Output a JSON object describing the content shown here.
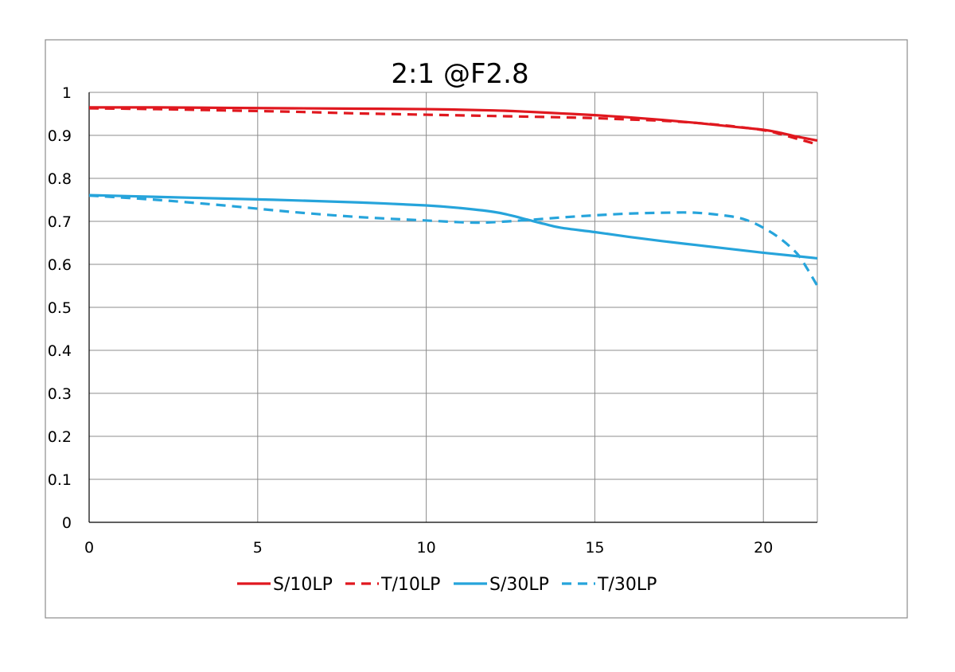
{
  "chart_data": {
    "type": "line",
    "title": "2:1  @F2.8",
    "xlabel": "",
    "ylabel": "",
    "xlim": [
      0,
      21.6
    ],
    "ylim": [
      0,
      1
    ],
    "xticks": [
      0,
      5,
      10,
      15,
      20
    ],
    "xtick_labels": [
      "0",
      "5",
      "10",
      "15",
      "20"
    ],
    "yticks": [
      0,
      0.1,
      0.2,
      0.3,
      0.4,
      0.5,
      0.6,
      0.7,
      0.8,
      0.9,
      1
    ],
    "ytick_labels": [
      "0",
      "0.1",
      "0.2",
      "0.3",
      "0.4",
      "0.5",
      "0.6",
      "0.7",
      "0.8",
      "0.9",
      "1"
    ],
    "grid": true,
    "legend_position": "bottom",
    "series": [
      {
        "name": "S/10LP",
        "color": "#e0181f",
        "dash": "solid",
        "x": [
          0,
          2,
          4,
          6,
          8,
          10,
          12,
          13,
          14,
          15,
          16,
          17,
          18,
          19,
          20,
          20.5,
          21,
          21.6
        ],
        "y": [
          0.965,
          0.965,
          0.964,
          0.963,
          0.962,
          0.961,
          0.958,
          0.955,
          0.951,
          0.947,
          0.942,
          0.936,
          0.929,
          0.921,
          0.913,
          0.906,
          0.897,
          0.888
        ]
      },
      {
        "name": "T/10LP",
        "color": "#e0181f",
        "dash": "dashed",
        "x": [
          0,
          2,
          4,
          6,
          8,
          10,
          12,
          14,
          15,
          16,
          17,
          18,
          19,
          20,
          20.5,
          21,
          21.6
        ],
        "y": [
          0.963,
          0.961,
          0.958,
          0.955,
          0.951,
          0.948,
          0.945,
          0.942,
          0.94,
          0.937,
          0.934,
          0.929,
          0.922,
          0.912,
          0.903,
          0.892,
          0.879
        ]
      },
      {
        "name": "S/30LP",
        "color": "#26a4db",
        "dash": "solid",
        "x": [
          0,
          2,
          4,
          6,
          8,
          10,
          11,
          12,
          12.5,
          13,
          13.5,
          14,
          15,
          16,
          17,
          18,
          19,
          20,
          21,
          21.6
        ],
        "y": [
          0.761,
          0.757,
          0.753,
          0.749,
          0.744,
          0.737,
          0.731,
          0.722,
          0.714,
          0.704,
          0.694,
          0.685,
          0.675,
          0.664,
          0.654,
          0.645,
          0.636,
          0.627,
          0.619,
          0.614
        ]
      },
      {
        "name": "T/30LP",
        "color": "#26a4db",
        "dash": "dashed",
        "x": [
          0,
          2,
          4,
          6,
          8,
          10,
          11,
          11.5,
          12,
          13,
          14,
          15,
          16,
          17,
          18,
          19,
          19.5,
          20,
          20.5,
          21,
          21.3,
          21.6
        ],
        "y": [
          0.76,
          0.75,
          0.737,
          0.722,
          0.71,
          0.702,
          0.698,
          0.697,
          0.698,
          0.703,
          0.709,
          0.714,
          0.718,
          0.72,
          0.72,
          0.712,
          0.703,
          0.685,
          0.66,
          0.625,
          0.59,
          0.55
        ]
      }
    ]
  }
}
